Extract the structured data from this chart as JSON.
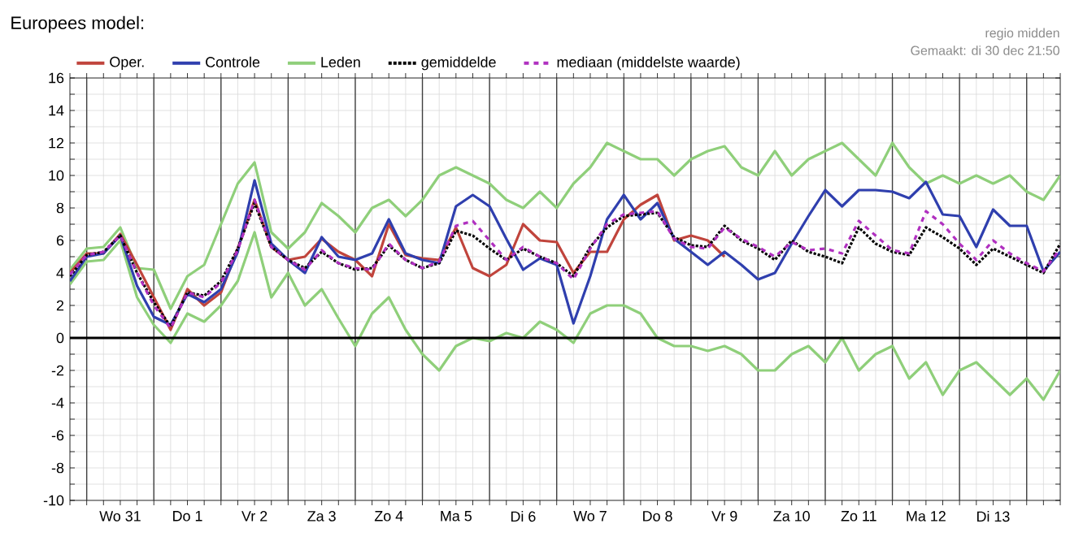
{
  "chart_data": {
    "type": "line",
    "title": "Europees model:",
    "annotations": [
      "regio midden",
      "Gemaakt: di 30 dec 21:50"
    ],
    "categories": [
      null,
      null,
      null,
      "Wo 31",
      null,
      null,
      null,
      "Do 1",
      null,
      null,
      null,
      "Vr 2",
      null,
      null,
      null,
      "Za 3",
      null,
      null,
      null,
      "Zo 4",
      null,
      null,
      null,
      "Ma 5",
      null,
      null,
      null,
      "Di 6",
      null,
      null,
      null,
      "Wo 7",
      null,
      null,
      null,
      "Do 8",
      null,
      null,
      null,
      "Vr 9",
      null,
      null,
      null,
      "Za 10",
      null,
      null,
      null,
      "Zo 11",
      null,
      null,
      null,
      "Ma 12",
      null,
      null,
      null,
      "Di 13",
      null,
      null,
      null,
      null
    ],
    "series": [
      {
        "name": "Oper.",
        "color": "#c0443c",
        "values": [
          4.0,
          5.2,
          5.2,
          6.4,
          4.5,
          2.5,
          0.5,
          3.0,
          2.0,
          2.8,
          5.5,
          8.5,
          5.6,
          4.8,
          5.0,
          6.1,
          5.3,
          4.8,
          3.8,
          7.0,
          5.1,
          4.9,
          4.8,
          6.8,
          4.3,
          3.8,
          4.5,
          7.0,
          6.0,
          5.9,
          4.0,
          5.3,
          5.3,
          7.3,
          8.2,
          8.8,
          6.0,
          6.3,
          6.0,
          5.0,
          null,
          null,
          null,
          null,
          null,
          null,
          null,
          null,
          null,
          null,
          null,
          null,
          null,
          null,
          null,
          null,
          null,
          null,
          null,
          null
        ]
      },
      {
        "name": "Controle",
        "color": "#2f3fae",
        "values": [
          3.5,
          5.0,
          5.2,
          6.3,
          3.2,
          1.3,
          0.8,
          2.7,
          2.2,
          3.0,
          5.3,
          9.7,
          5.8,
          4.8,
          4.0,
          6.2,
          5.0,
          4.8,
          5.2,
          7.3,
          5.2,
          4.8,
          4.6,
          8.1,
          8.8,
          8.1,
          6.1,
          4.2,
          4.9,
          4.5,
          0.9,
          3.8,
          7.3,
          8.8,
          7.3,
          8.3,
          6.1,
          5.3,
          4.5,
          5.3,
          4.5,
          3.6,
          4.0,
          5.8,
          7.5,
          9.1,
          8.1,
          9.1,
          9.1,
          9.0,
          8.6,
          9.6,
          7.6,
          7.5,
          5.6,
          7.9,
          6.9,
          6.9,
          4.1,
          5.3
        ]
      },
      {
        "name": "Leden",
        "color": "#8fcf7a",
        "values": [
          4.2,
          5.5,
          5.6,
          6.8,
          4.3,
          4.2,
          1.8,
          3.8,
          4.5,
          7.0,
          9.5,
          10.8,
          6.5,
          5.5,
          6.5,
          8.3,
          7.5,
          6.5,
          8.0,
          8.5,
          7.5,
          8.5,
          10.0,
          10.5,
          10.0,
          9.5,
          8.5,
          8.0,
          9.0,
          8.0,
          9.5,
          10.5,
          12.0,
          11.5,
          11.0,
          11.0,
          10.0,
          11.0,
          11.5,
          11.8,
          10.5,
          10.0,
          11.5,
          10.0,
          11.0,
          11.5,
          12.0,
          11.0,
          10.0,
          12.0,
          10.5,
          9.5,
          10.0,
          9.5,
          10.0,
          9.5,
          10.0,
          9.0,
          8.5,
          10.0
        ]
      },
      {
        "color": "#8fcf7a",
        "values": [
          3.3,
          4.7,
          4.8,
          6.0,
          2.5,
          0.8,
          -0.3,
          1.5,
          1.0,
          2.0,
          3.5,
          6.5,
          2.5,
          4.0,
          2.0,
          3.0,
          1.2,
          -0.5,
          1.5,
          2.5,
          0.5,
          -1.0,
          -2.0,
          -0.5,
          0.0,
          -0.2,
          0.3,
          0.0,
          1.0,
          0.5,
          -0.3,
          1.5,
          2.0,
          2.0,
          1.5,
          0.0,
          -0.5,
          -0.5,
          -0.8,
          -0.5,
          -1.0,
          -2.0,
          -2.0,
          -1.0,
          -0.5,
          -1.5,
          0.0,
          -2.0,
          -1.0,
          -0.5,
          -2.5,
          -1.5,
          -3.5,
          -2.0,
          -1.5,
          -2.5,
          -3.5,
          -2.5,
          -3.8,
          -2.0
        ]
      },
      {
        "name": "gemiddelde",
        "color": "#000000",
        "line_style": "dotted",
        "values": [
          3.8,
          5.1,
          5.3,
          6.3,
          4.0,
          2.2,
          0.7,
          2.8,
          2.6,
          3.5,
          5.5,
          8.3,
          5.6,
          4.8,
          4.3,
          5.3,
          4.6,
          4.2,
          4.3,
          5.7,
          4.8,
          4.3,
          4.6,
          6.6,
          6.3,
          5.5,
          4.8,
          5.5,
          5.0,
          4.6,
          3.8,
          5.6,
          6.8,
          7.5,
          7.6,
          7.7,
          6.2,
          5.7,
          5.6,
          6.9,
          6.0,
          5.5,
          4.8,
          6.0,
          5.3,
          5.0,
          4.6,
          6.8,
          5.8,
          5.3,
          5.1,
          6.8,
          6.2,
          5.5,
          4.5,
          5.5,
          5.0,
          4.5,
          4.0,
          5.8
        ]
      },
      {
        "name": "mediaan (middelste waarde)",
        "color": "#b030c0",
        "line_style": "dashed",
        "values": [
          3.9,
          5.1,
          5.3,
          6.3,
          4.0,
          2.0,
          0.6,
          2.8,
          2.5,
          3.4,
          5.4,
          8.5,
          5.6,
          4.8,
          4.2,
          5.4,
          4.6,
          4.3,
          4.2,
          5.8,
          4.8,
          4.3,
          4.7,
          6.9,
          7.2,
          6.0,
          4.8,
          5.6,
          5.0,
          4.6,
          3.6,
          5.5,
          7.0,
          7.6,
          7.7,
          7.8,
          6.1,
          5.6,
          5.5,
          6.8,
          6.1,
          5.6,
          5.0,
          5.9,
          5.4,
          5.5,
          5.2,
          7.2,
          6.3,
          5.4,
          5.2,
          7.8,
          7.0,
          5.8,
          4.8,
          6.0,
          5.2,
          4.6,
          4.1,
          5.5
        ]
      }
    ],
    "ylim": [
      -10,
      16
    ],
    "yticks": [
      -10,
      {
        "value": -9,
        "label": null
      },
      -8,
      {
        "value": -7,
        "label": null
      },
      -6,
      {
        "value": -5,
        "label": null
      },
      -4,
      {
        "value": -3,
        "label": null
      },
      -2,
      {
        "value": -1,
        "label": null
      },
      0,
      {
        "value": 1,
        "label": null
      },
      2,
      {
        "value": 3,
        "label": null
      },
      4,
      {
        "value": 5,
        "label": null
      },
      6,
      {
        "value": 7,
        "label": null
      },
      8,
      {
        "value": 9,
        "label": null
      },
      10,
      {
        "value": 11,
        "label": null
      },
      12,
      {
        "value": 13,
        "label": null
      },
      14,
      {
        "value": 15,
        "label": null
      },
      16
    ],
    "ref_lines": [
      {
        "axis": "y",
        "value": 0,
        "color": "#000000"
      }
    ],
    "grid": true,
    "legend": "top",
    "marker": "none"
  }
}
